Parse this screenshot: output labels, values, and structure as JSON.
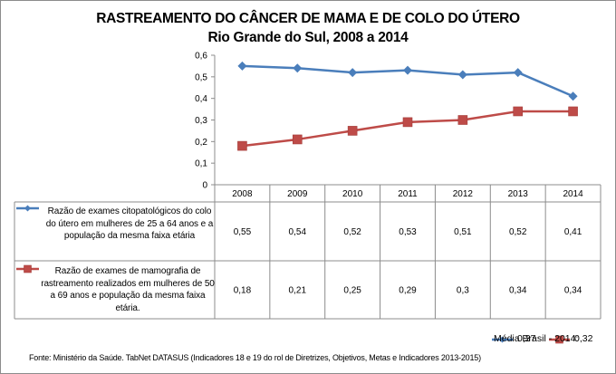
{
  "chart_data": {
    "type": "line",
    "title": "RASTREAMENTO DO CÂNCER DE MAMA E DE COLO DO ÚTERO",
    "subtitle": "Rio Grande do Sul, 2008 a 2014",
    "categories": [
      "2008",
      "2009",
      "2010",
      "2011",
      "2012",
      "2013",
      "2014"
    ],
    "ylim": [
      0,
      0.6
    ],
    "yticks": [
      0,
      0.1,
      0.2,
      0.3,
      0.4,
      0.5,
      0.6
    ],
    "ytick_labels": [
      "0",
      "0,1",
      "0,2",
      "0,3",
      "0,4",
      "0,5",
      "0,6"
    ],
    "xlabel": "",
    "ylabel": "",
    "grid": false,
    "legend_placement": "data-table-below",
    "series": [
      {
        "name": "Razão de exames citopatológicos do colo do útero em mulheres de 25 a 64 anos e a população da mesma faixa etária",
        "color": "#4a7ebb",
        "marker": "diamond",
        "values": [
          0.55,
          0.54,
          0.52,
          0.53,
          0.51,
          0.52,
          0.41
        ],
        "value_labels": [
          "0,55",
          "0,54",
          "0,52",
          "0,53",
          "0,51",
          "0,52",
          "0,41"
        ]
      },
      {
        "name": "Razão de exames de mamografia de rastreamento realizados em mulheres de 50 a 69 anos e população da mesma faixa etária.",
        "color": "#be4b48",
        "marker": "square",
        "values": [
          0.18,
          0.21,
          0.25,
          0.29,
          0.3,
          0.34,
          0.34
        ],
        "value_labels": [
          "0,18",
          "0,21",
          "0,25",
          "0,29",
          "0,3",
          "0,34",
          "0,34"
        ]
      }
    ],
    "annotations": {
      "brasil_label": "Média Brasil - 2014:",
      "brasil_values": [
        "0,37",
        "0,32"
      ]
    },
    "source": "Fonte: Ministério da Saúde. TabNet DATASUS (Indicadores 18 e 19 do rol de Diretrizes, Objetivos, Metas e Indicadores 2013-2015)"
  }
}
